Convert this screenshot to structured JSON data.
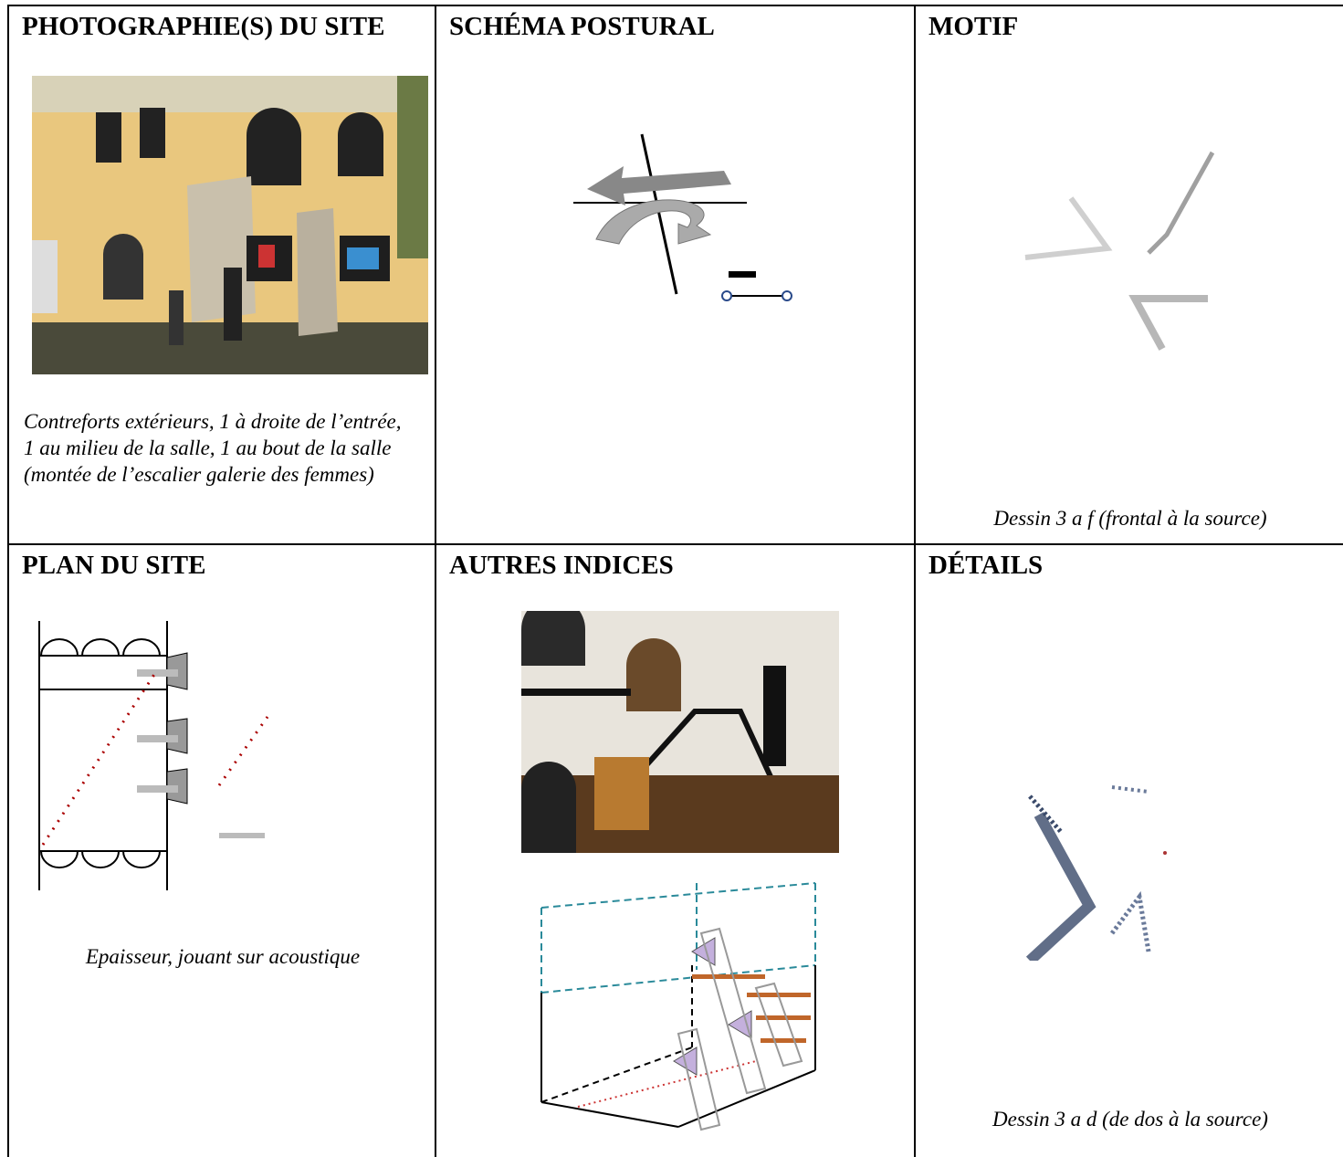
{
  "table": {
    "cells": [
      {
        "title": "PHOTOGRAPHIE(S) DU SITE",
        "caption": "Contreforts extérieurs, 1 à droite de l’entrée, 1 au milieu de la salle, 1 au bout de la salle (montée de l’escalier galerie des femmes)"
      },
      {
        "title": "SCHÉMA POSTURAL"
      },
      {
        "title": "MOTIF",
        "caption": "Dessin 3 a f (frontal à la source)"
      },
      {
        "title": "PLAN DU SITE",
        "caption": "Epaisseur, jouant sur acoustique"
      },
      {
        "title": "AUTRES INDICES"
      },
      {
        "title": "DÉTAILS",
        "caption": "Dessin 3 a d (de dos à la source)"
      }
    ]
  }
}
